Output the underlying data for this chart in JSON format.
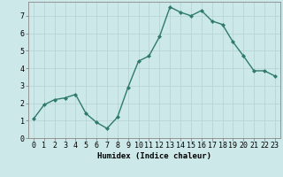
{
  "title": "",
  "xlabel": "Humidex (Indice chaleur)",
  "ylabel": "",
  "x": [
    0,
    1,
    2,
    3,
    4,
    5,
    6,
    7,
    8,
    9,
    10,
    11,
    12,
    13,
    14,
    15,
    16,
    17,
    18,
    19,
    20,
    21,
    22,
    23
  ],
  "y": [
    1.1,
    1.9,
    2.2,
    2.3,
    2.5,
    1.4,
    0.9,
    0.55,
    1.2,
    2.9,
    4.4,
    4.7,
    5.8,
    7.5,
    7.2,
    7.0,
    7.3,
    6.7,
    6.5,
    5.5,
    4.7,
    3.85,
    3.85,
    3.55
  ],
  "line_color": "#2e7b6e",
  "marker": "D",
  "marker_size": 2.0,
  "line_width": 1.0,
  "bg_color": "#cce8e8",
  "grid_color": "#b8d4d4",
  "xlim": [
    -0.5,
    23.5
  ],
  "ylim": [
    0,
    7.8
  ],
  "yticks": [
    0,
    1,
    2,
    3,
    4,
    5,
    6,
    7
  ],
  "xtick_labels": [
    "0",
    "1",
    "2",
    "3",
    "4",
    "5",
    "6",
    "7",
    "8",
    "9",
    "10",
    "11",
    "12",
    "13",
    "14",
    "15",
    "16",
    "17",
    "18",
    "19",
    "20",
    "21",
    "22",
    "23"
  ],
  "xlabel_fontsize": 6.5,
  "tick_fontsize": 6.0
}
